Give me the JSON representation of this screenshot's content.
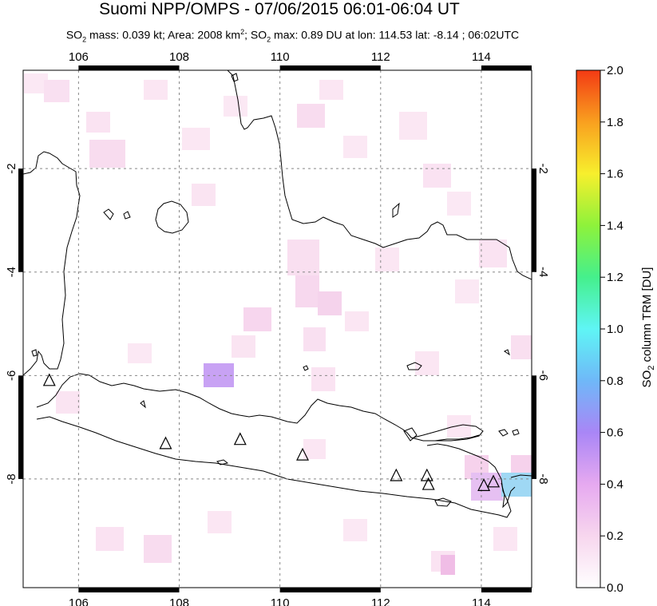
{
  "header": {
    "title": "Suomi NPP/OMPS - 07/06/2015 06:01-06:04 UT",
    "subtitle_parts": {
      "p1": "SO",
      "p1_sub": "2",
      "p2": " mass: 0.039 kt; Area: 2008 km",
      "p2_sup": "2",
      "p3": "; SO",
      "p3_sub": "2",
      "p4": " max: 0.89 DU at lon: 114.53 lat: -8.14 ; 06:02UTC"
    }
  },
  "map": {
    "lon_ticks": [
      "106",
      "108",
      "110",
      "112",
      "114"
    ],
    "lat_ticks": [
      "-2",
      "-4",
      "-6",
      "-8"
    ],
    "lon_values": [
      106,
      108,
      110,
      112,
      114
    ],
    "lat_values": [
      -2,
      -4,
      -6,
      -8
    ],
    "lon_range": [
      104.9,
      115.0
    ],
    "lat_range": [
      -0.1,
      -10.1
    ],
    "volcano_markers": [
      {
        "lon": 105.42,
        "lat": -6.1
      },
      {
        "lon": 107.73,
        "lat": -7.32
      },
      {
        "lon": 109.21,
        "lat": -7.24
      },
      {
        "lon": 110.45,
        "lat": -7.54
      },
      {
        "lon": 112.31,
        "lat": -7.94
      },
      {
        "lon": 112.92,
        "lat": -7.94
      },
      {
        "lon": 112.95,
        "lat": -8.11
      },
      {
        "lon": 114.05,
        "lat": -8.13
      },
      {
        "lon": 114.24,
        "lat": -8.06
      }
    ],
    "so2_pixels_note_colors": {
      "faint": "#fbe6f3",
      "light": "#f6d2ec",
      "medium": "#f0bde6",
      "purple": "#c8a2f4",
      "blue": "#9fd8f4",
      "violet": "#e6c0f2"
    }
  },
  "colorbar": {
    "title_main": "SO",
    "title_sub": "2",
    "title_rest": " column TRM [DU]",
    "ticks": [
      "2.0",
      "1.8",
      "1.6",
      "1.4",
      "1.2",
      "1.0",
      "0.8",
      "0.6",
      "0.4",
      "0.2",
      "0.0"
    ],
    "values": [
      2.0,
      1.8,
      1.6,
      1.4,
      1.2,
      1.0,
      0.8,
      0.6,
      0.4,
      0.2,
      0.0
    ],
    "colors": [
      "#ffffff",
      "#f7d6ee",
      "#e6a9f0",
      "#a986f6",
      "#6fb8f8",
      "#5ff5f5",
      "#45f08c",
      "#8ef23b",
      "#f7ef2d",
      "#f9a01f",
      "#f33a14"
    ]
  }
}
